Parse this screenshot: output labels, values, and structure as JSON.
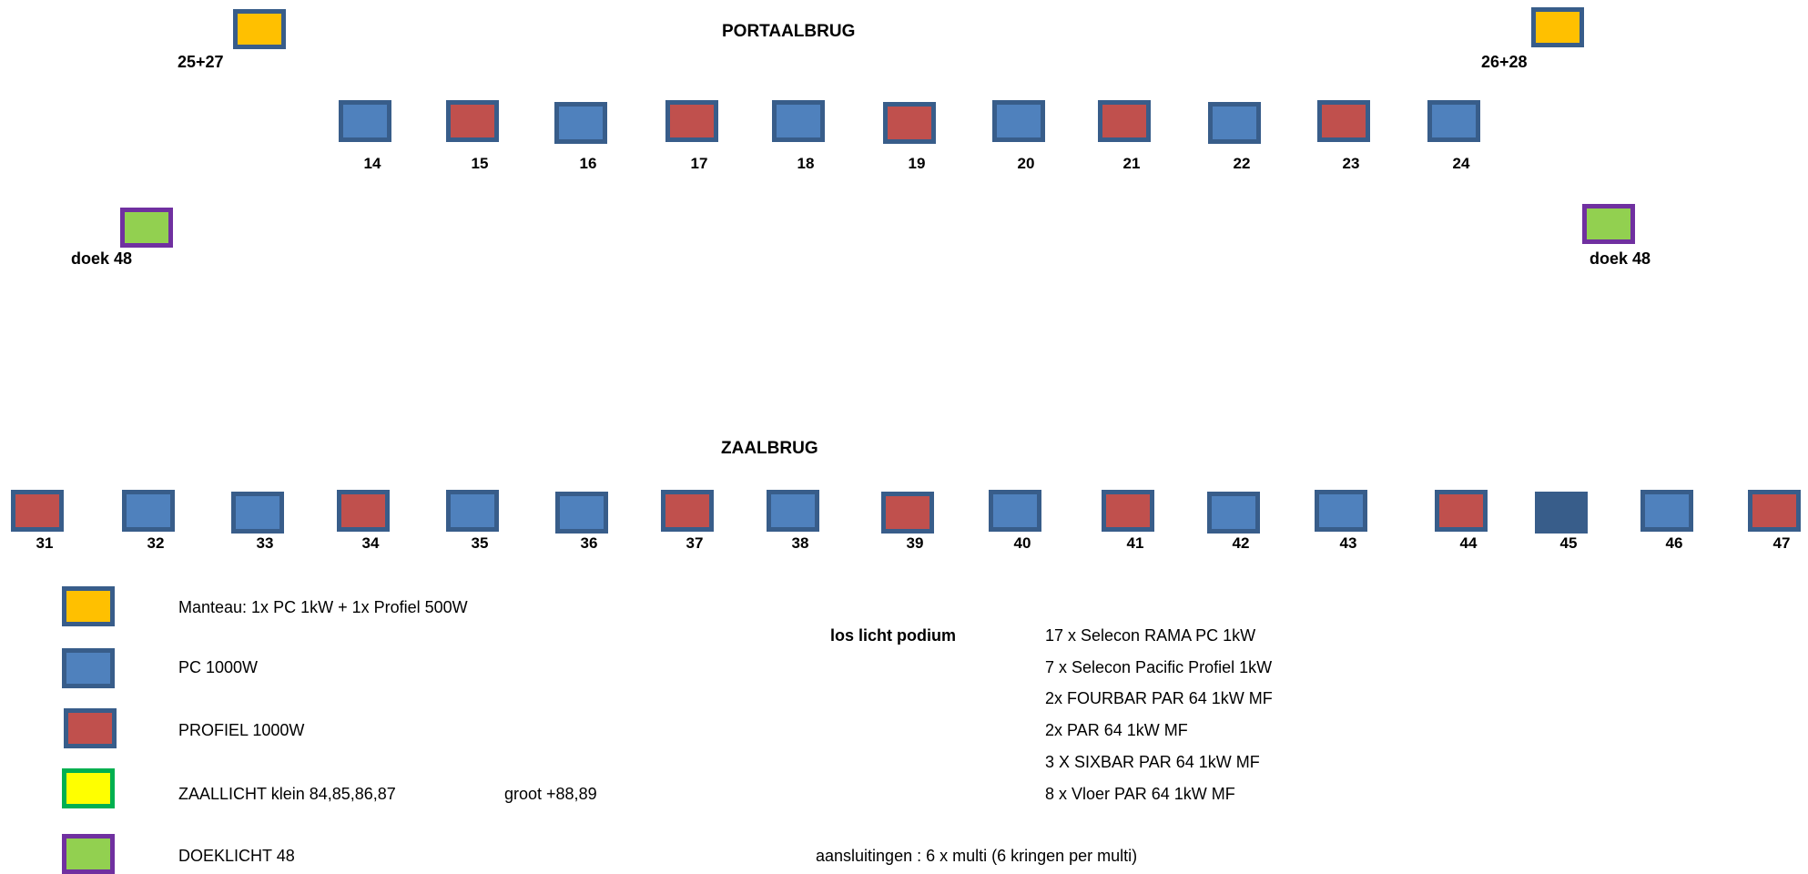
{
  "portaalbrug": {
    "title": "PORTAALBRUG",
    "manteau_left": "25+27",
    "manteau_right": "26+28",
    "doek_left": "doek 48",
    "doek_right": "doek 48",
    "fixtures": [
      {
        "num": "14",
        "type": "pc"
      },
      {
        "num": "15",
        "type": "profiel"
      },
      {
        "num": "16",
        "type": "pc"
      },
      {
        "num": "17",
        "type": "profiel"
      },
      {
        "num": "18",
        "type": "pc"
      },
      {
        "num": "19",
        "type": "profiel"
      },
      {
        "num": "20",
        "type": "pc"
      },
      {
        "num": "21",
        "type": "profiel"
      },
      {
        "num": "22",
        "type": "pc"
      },
      {
        "num": "23",
        "type": "profiel"
      },
      {
        "num": "24",
        "type": "pc"
      }
    ]
  },
  "zaalbrug": {
    "title": "ZAALBRUG",
    "fixtures": [
      {
        "num": "31",
        "type": "profiel"
      },
      {
        "num": "32",
        "type": "pc"
      },
      {
        "num": "33",
        "type": "pc"
      },
      {
        "num": "34",
        "type": "profiel"
      },
      {
        "num": "35",
        "type": "pc"
      },
      {
        "num": "36",
        "type": "pc"
      },
      {
        "num": "37",
        "type": "profiel"
      },
      {
        "num": "38",
        "type": "pc"
      },
      {
        "num": "39",
        "type": "profiel"
      },
      {
        "num": "40",
        "type": "pc"
      },
      {
        "num": "41",
        "type": "profiel"
      },
      {
        "num": "42",
        "type": "pc"
      },
      {
        "num": "43",
        "type": "pc"
      },
      {
        "num": "44",
        "type": "profiel"
      },
      {
        "num": "45",
        "type": "pc-dark"
      },
      {
        "num": "46",
        "type": "pc"
      },
      {
        "num": "47",
        "type": "profiel"
      }
    ]
  },
  "legend": {
    "manteau": "Manteau: 1x PC 1kW + 1x Profiel 500W",
    "pc": "PC 1000W",
    "profiel": "PROFIEL 1000W",
    "zaallicht": "ZAALLICHT klein 84,85,86,87",
    "zaallicht_groot": "groot +88,89",
    "doeklicht": "DOEKLICHT 48"
  },
  "los_licht": {
    "heading": "los licht podium",
    "items": [
      "17 x Selecon RAMA PC 1kW",
      "7 x Selecon Pacific Profiel 1kW",
      "2x FOURBAR PAR 64 1kW MF",
      "2x PAR 64 1kW MF",
      "3 X SIXBAR PAR 64 1kW MF",
      "8 x Vloer PAR 64 1kW MF"
    ],
    "aansluitingen": "aansluitingen : 6 x multi (6 kringen per multi)"
  },
  "colors": {
    "pc_fill": "#4f81bd",
    "pc_border": "#385d8a",
    "profiel_fill": "#c0504d",
    "manteau_fill": "#ffc000",
    "doek_fill": "#92d050",
    "doek_border": "#7030a0",
    "zaallicht_fill": "#ffff00",
    "zaallicht_border": "#00b050"
  }
}
